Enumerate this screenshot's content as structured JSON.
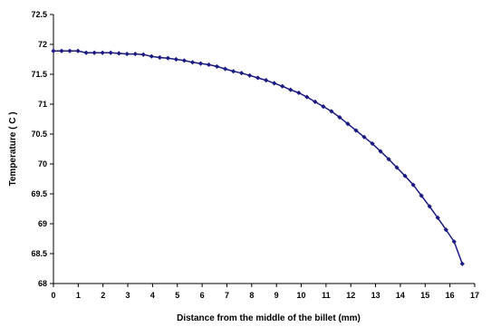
{
  "chart_data": {
    "type": "line",
    "title": "",
    "xlabel": "Distance from the middle of the billet (mm)",
    "ylabel": "Temperature ( C )",
    "xlim": [
      0,
      17
    ],
    "ylim": [
      68,
      72.5
    ],
    "xticks": [
      "0",
      "1",
      "2",
      "3",
      "4",
      "5",
      "6",
      "7",
      "8",
      "9",
      "10",
      "11",
      "12",
      "13",
      "14",
      "15",
      "16",
      "17"
    ],
    "yticks": [
      "68",
      "68.5",
      "69",
      "69.5",
      "70",
      "70.5",
      "71",
      "71.5",
      "72",
      "72.5"
    ],
    "grid": false,
    "legend": "none",
    "series": [
      {
        "color": "#1a1a80",
        "marker": "diamond",
        "x": [
          0,
          0.33,
          0.66,
          0.99,
          1.32,
          1.65,
          1.98,
          2.31,
          2.64,
          2.97,
          3.3,
          3.63,
          3.96,
          4.29,
          4.62,
          4.95,
          5.28,
          5.61,
          5.94,
          6.27,
          6.6,
          6.93,
          7.26,
          7.59,
          7.92,
          8.25,
          8.58,
          8.91,
          9.24,
          9.57,
          9.9,
          10.23,
          10.56,
          10.89,
          11.22,
          11.55,
          11.88,
          12.21,
          12.54,
          12.87,
          13.2,
          13.53,
          13.86,
          14.19,
          14.52,
          14.85,
          15.18,
          15.51,
          15.84,
          16.17,
          16.5
        ],
        "values": [
          71.89,
          71.89,
          71.89,
          71.89,
          71.86,
          71.86,
          71.86,
          71.86,
          71.85,
          71.84,
          71.84,
          71.83,
          71.8,
          71.78,
          71.77,
          71.75,
          71.73,
          71.7,
          71.68,
          71.66,
          71.63,
          71.59,
          71.55,
          71.52,
          71.48,
          71.44,
          71.4,
          71.35,
          71.3,
          71.24,
          71.19,
          71.12,
          71.04,
          70.96,
          70.88,
          70.78,
          70.67,
          70.56,
          70.45,
          70.34,
          70.21,
          70.08,
          69.94,
          69.8,
          69.65,
          69.47,
          69.29,
          69.1,
          68.9,
          68.7,
          68.33
        ]
      }
    ]
  }
}
